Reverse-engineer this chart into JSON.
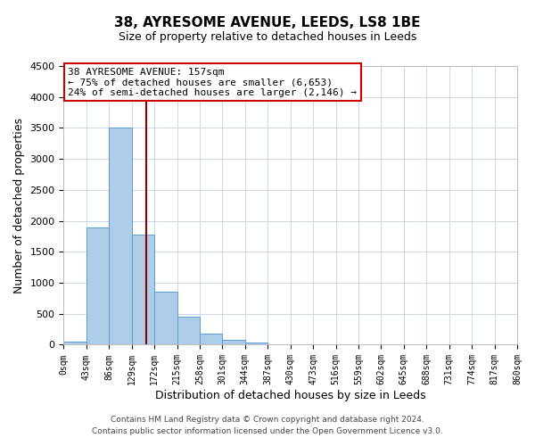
{
  "title": "38, AYRESOME AVENUE, LEEDS, LS8 1BE",
  "subtitle": "Size of property relative to detached houses in Leeds",
  "xlabel": "Distribution of detached houses by size in Leeds",
  "ylabel": "Number of detached properties",
  "bar_edges": [
    0,
    43,
    86,
    129,
    172,
    215,
    258,
    301,
    344,
    387,
    430,
    473,
    516,
    559,
    602,
    645,
    688,
    731,
    774,
    817,
    860
  ],
  "bar_heights": [
    50,
    1900,
    3500,
    1775,
    850,
    460,
    175,
    80,
    30,
    10,
    0,
    0,
    0,
    0,
    0,
    0,
    0,
    0,
    0,
    0
  ],
  "bar_color": "#aecde8",
  "bar_edge_color": "#5b9bd5",
  "vline_x": 157,
  "vline_color": "#8b0000",
  "ylim": [
    0,
    4500
  ],
  "annotation_title": "38 AYRESOME AVENUE: 157sqm",
  "annotation_line1": "← 75% of detached houses are smaller (6,653)",
  "annotation_line2": "24% of semi-detached houses are larger (2,146) →",
  "annotation_box_color": "#ffffff",
  "annotation_box_edge": "#cc0000",
  "footer1": "Contains HM Land Registry data © Crown copyright and database right 2024.",
  "footer2": "Contains public sector information licensed under the Open Government Licence v3.0.",
  "tick_labels": [
    "0sqm",
    "43sqm",
    "86sqm",
    "129sqm",
    "172sqm",
    "215sqm",
    "258sqm",
    "301sqm",
    "344sqm",
    "387sqm",
    "430sqm",
    "473sqm",
    "516sqm",
    "559sqm",
    "602sqm",
    "645sqm",
    "688sqm",
    "731sqm",
    "774sqm",
    "817sqm",
    "860sqm"
  ],
  "background_color": "#ffffff",
  "grid_color": "#c8d8e8",
  "title_fontsize": 11,
  "subtitle_fontsize": 9,
  "xlabel_fontsize": 9,
  "ylabel_fontsize": 9,
  "tick_fontsize": 7,
  "annot_fontsize": 8,
  "footer_fontsize": 6.5
}
